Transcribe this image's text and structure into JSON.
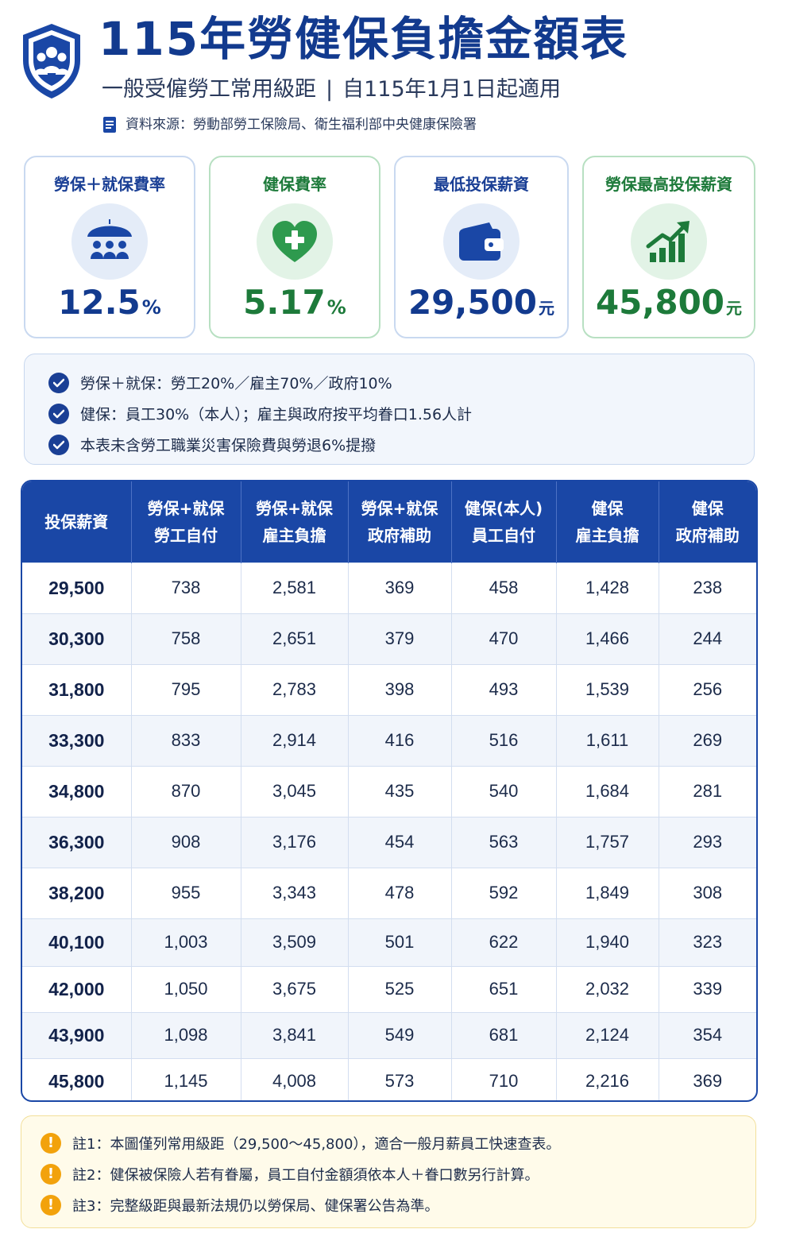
{
  "header": {
    "title": "115年勞健保負擔金額表",
    "subtitle_left": "一般受僱勞工常用級距",
    "subtitle_sep": "|",
    "subtitle_right": "自115年1月1日起適用",
    "source": "資料來源：勞動部勞工保險局、衛生福利部中央健康保險署"
  },
  "cards": [
    {
      "label": "勞保＋就保費率",
      "value": "12.5",
      "unit": "%",
      "icon": "umbrella-people-icon"
    },
    {
      "label": "健保費率",
      "value": "5.17",
      "unit": "%",
      "icon": "heart-plus-icon"
    },
    {
      "label": "最低投保薪資",
      "value": "29,500",
      "unit": "元",
      "icon": "wallet-icon"
    },
    {
      "label": "勞保最高投保薪資",
      "value": "45,800",
      "unit": "元",
      "icon": "bar-chart-up-icon"
    }
  ],
  "info": [
    "勞保＋就保：勞工20%／雇主70%／政府10%",
    "健保：員工30%（本人）；雇主與政府按平均眷口1.56人計",
    "本表未含勞工職業災害保險費與勞退6%提撥"
  ],
  "table": {
    "headers": [
      [
        "投保薪資"
      ],
      [
        "勞保+就保",
        "勞工自付"
      ],
      [
        "勞保+就保",
        "雇主負擔"
      ],
      [
        "勞保+就保",
        "政府補助"
      ],
      [
        "健保(本人)",
        "員工自付"
      ],
      [
        "健保",
        "雇主負擔"
      ],
      [
        "健保",
        "政府補助"
      ]
    ],
    "rows": [
      [
        "29,500",
        "738",
        "2,581",
        "369",
        "458",
        "1,428",
        "238"
      ],
      [
        "30,300",
        "758",
        "2,651",
        "379",
        "470",
        "1,466",
        "244"
      ],
      [
        "31,800",
        "795",
        "2,783",
        "398",
        "493",
        "1,539",
        "256"
      ],
      [
        "33,300",
        "833",
        "2,914",
        "416",
        "516",
        "1,611",
        "269"
      ],
      [
        "34,800",
        "870",
        "3,045",
        "435",
        "540",
        "1,684",
        "281"
      ],
      [
        "36,300",
        "908",
        "3,176",
        "454",
        "563",
        "1,757",
        "293"
      ],
      [
        "38,200",
        "955",
        "3,343",
        "478",
        "592",
        "1,849",
        "308"
      ],
      [
        "40,100",
        "1,003",
        "3,509",
        "501",
        "622",
        "1,940",
        "323"
      ],
      [
        "42,000",
        "1,050",
        "3,675",
        "525",
        "651",
        "2,032",
        "339"
      ],
      [
        "43,900",
        "1,098",
        "3,841",
        "549",
        "681",
        "2,124",
        "354"
      ],
      [
        "45,800",
        "1,145",
        "4,008",
        "573",
        "710",
        "2,216",
        "369"
      ]
    ]
  },
  "notes": [
    "註1：本圖僅列常用級距（29,500～45,800），適合一般月薪員工快速查表。",
    "註2：健保被保險人若有眷屬，員工自付金額須依本人＋眷口數另行計算。",
    "註3：完整級距與最新法規仍以勞保局、健保署公告為準。"
  ],
  "colors": {
    "primary_blue": "#1a47a6",
    "title_blue": "#123a8e",
    "accent_green": "#1d7a3a",
    "warning_orange": "#f2a20c"
  }
}
